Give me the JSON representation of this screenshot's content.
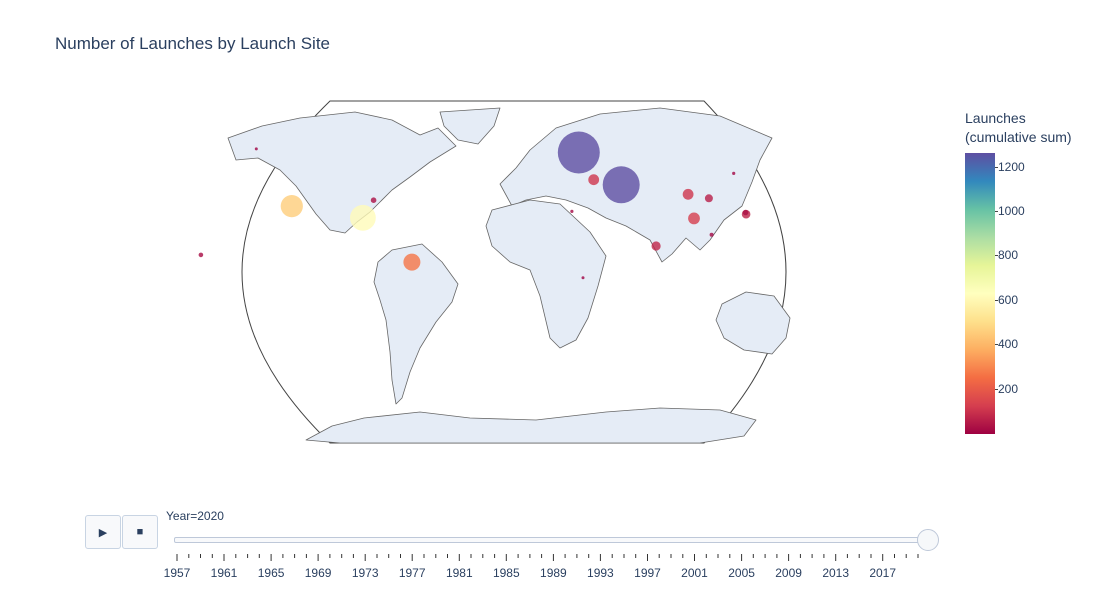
{
  "title": "Number of Launches by Launch Site",
  "colorbar": {
    "title_line1": "Launches",
    "title_line2": "(cumulative sum)",
    "ticks": [
      "1200",
      "1000",
      "800",
      "600",
      "400",
      "200"
    ],
    "colors": [
      "#9e0142",
      "#d53e4f",
      "#f46d43",
      "#fdae61",
      "#fee08b",
      "#ffffbf",
      "#e6f598",
      "#abdda4",
      "#66c2a5",
      "#3288bd",
      "#5e4fa2"
    ]
  },
  "controls": {
    "play_icon": "play-icon",
    "stop_icon": "stop-icon",
    "current_label": "Year=2020"
  },
  "slider": {
    "value": 2020,
    "min": 1957,
    "max": 2020,
    "tick_labels": [
      "1957",
      "1961",
      "1965",
      "1969",
      "1973",
      "1977",
      "1981",
      "1985",
      "1989",
      "1993",
      "1997",
      "2001",
      "2005",
      "2009",
      "2013",
      "2017"
    ]
  },
  "chart_data": {
    "type": "scatter_geo",
    "title": "Number of Launches by Launch Site",
    "projection": "natural earth",
    "colorscale": "Spectral",
    "color_range": [
      0,
      1270
    ],
    "frame": "Year=2020",
    "sites": [
      {
        "lon": 63.3,
        "lat": 45.9,
        "launches": 1270
      },
      {
        "lon": 40.6,
        "lat": 62.9,
        "launches": 1640
      },
      {
        "lon": -80.6,
        "lat": 28.5,
        "launches": 620
      },
      {
        "lon": -120.6,
        "lat": 34.7,
        "launches": 460
      },
      {
        "lon": -52.8,
        "lat": 5.2,
        "launches": 270
      },
      {
        "lon": 48.0,
        "lat": 48.6,
        "launches": 110
      },
      {
        "lon": 100.3,
        "lat": 40.9,
        "launches": 110
      },
      {
        "lon": 102.0,
        "lat": 28.2,
        "launches": 130
      },
      {
        "lon": 111.6,
        "lat": 38.8,
        "launches": 60
      },
      {
        "lon": 80.2,
        "lat": 13.7,
        "launches": 80
      },
      {
        "lon": 131.0,
        "lat": 30.4,
        "launches": 70
      },
      {
        "lon": 130.9,
        "lat": 31.3,
        "launches": 30
      },
      {
        "lon": -75.5,
        "lat": 37.8,
        "launches": 30
      },
      {
        "lon": -167.7,
        "lat": 9.0,
        "launches": 20
      },
      {
        "lon": 110.9,
        "lat": 19.6,
        "launches": 15
      },
      {
        "lon": 128.0,
        "lat": 51.9,
        "launches": 10
      },
      {
        "lon": 34.8,
        "lat": 31.9,
        "launches": 10
      },
      {
        "lon": -147.5,
        "lat": 64.8,
        "launches": 5
      },
      {
        "lon": 40.2,
        "lat": -3.0,
        "launches": 5
      }
    ]
  }
}
